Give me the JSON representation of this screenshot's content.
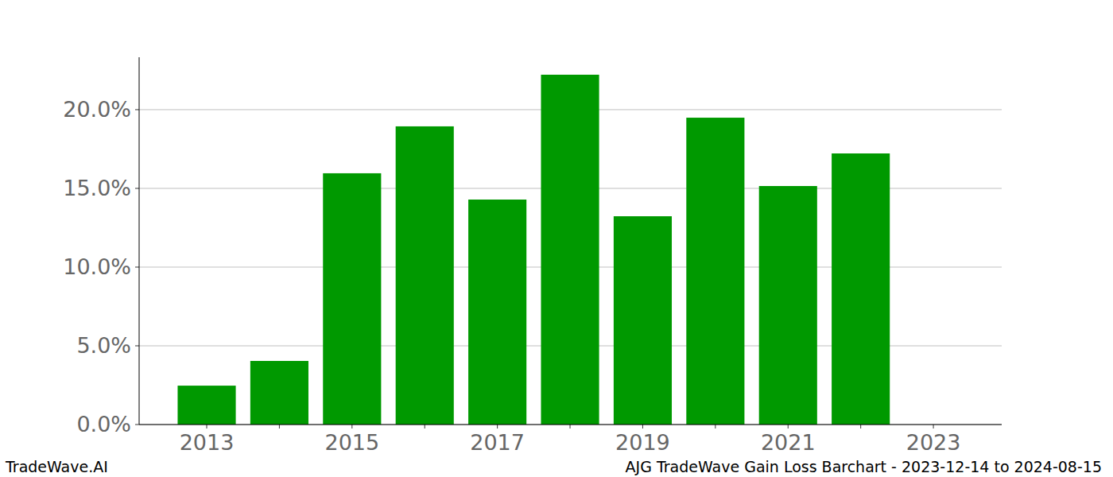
{
  "chart_data": {
    "type": "bar",
    "title": "AJG TradeWave Gain Loss Barchart - 2023-12-14 to 2024-08-15",
    "footer": "TradeWave.AI",
    "categories": [
      "2013",
      null,
      "2015",
      null,
      "2017",
      null,
      "2019",
      null,
      "2021",
      null,
      "2023"
    ],
    "values": [
      2.47,
      4.04,
      15.96,
      18.94,
      14.29,
      22.22,
      13.23,
      19.49,
      15.15,
      17.22,
      null
    ],
    "color": "#009900",
    "ylim": [
      0,
      23.33
    ],
    "yticks": [
      {
        "value": 0,
        "label": "0.0%"
      },
      {
        "value": 5,
        "label": "5.0%"
      },
      {
        "value": 10,
        "label": "10.0%"
      },
      {
        "value": 15,
        "label": "15.0%"
      },
      {
        "value": 20,
        "label": "20.0%"
      }
    ],
    "grid": true
  }
}
